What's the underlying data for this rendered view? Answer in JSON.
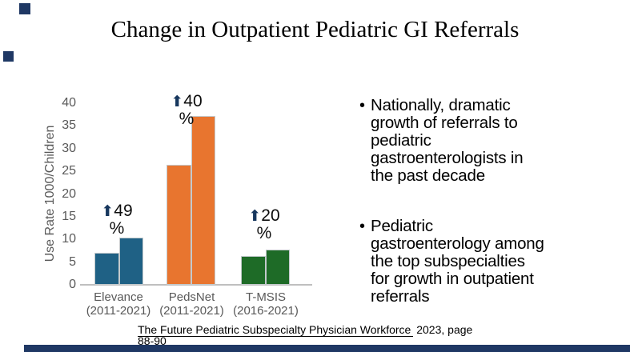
{
  "slide": {
    "title": "Change in Outpatient Pediatric GI Referrals",
    "accent_color": "#1F3864"
  },
  "chart_data": {
    "type": "bar",
    "title": "",
    "xlabel": "",
    "ylabel": "Use Rate 1000/Children",
    "ylim": [
      0,
      40
    ],
    "yticks": [
      0,
      5,
      10,
      15,
      20,
      25,
      30,
      35,
      40
    ],
    "grid": false,
    "legend": "none",
    "categories": [
      "Elevance (2011-2021)",
      "PedsNet (2011-2021)",
      "T-MSIS (2016-2021)"
    ],
    "groups": [
      {
        "name": "Elevance",
        "years": "(2011-2021)",
        "color": "#1F6185",
        "values": [
          7.0,
          10.4
        ],
        "change": "49"
      },
      {
        "name": "PedsNet",
        "years": "(2011-2021)",
        "color": "#E8752F",
        "values": [
          26.5,
          37.1
        ],
        "change": "40"
      },
      {
        "name": "T-MSIS",
        "years": "(2016-2021)",
        "color": "#1E6B27",
        "values": [
          6.4,
          7.8
        ],
        "change": "20"
      }
    ],
    "annotation_arrow": "⬆",
    "annotation_suffix": "%"
  },
  "bullets": {
    "bullet_char": "•",
    "items": [
      {
        "text": "Nationally, dramatic\ngrowth of referrals to\npediatric\ngastroenterologists in\nthe past decade"
      },
      {
        "text": "Pediatric\ngastroenterology among\nthe top subspecialties\nfor growth in outpatient\nreferrals"
      }
    ]
  },
  "citation": {
    "link_text": "The Future Pediatric Subspecialty Physician Workforce",
    "suffix": " 2023, page",
    "line2": "88-90"
  }
}
